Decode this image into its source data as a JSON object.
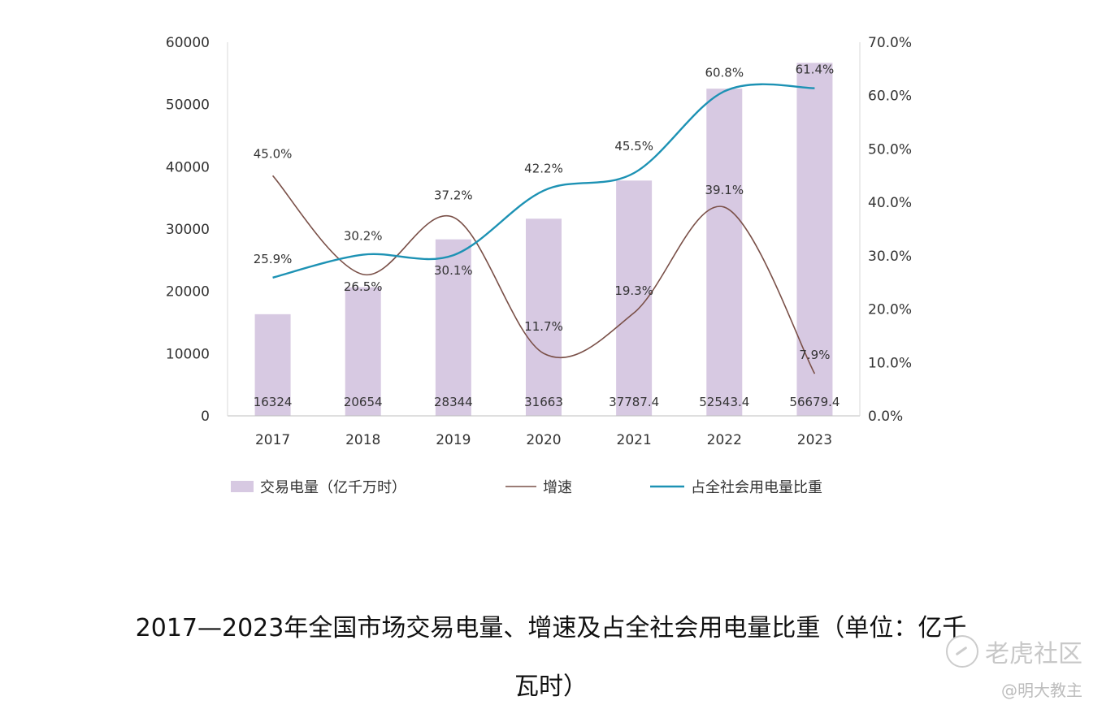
{
  "chart_data": {
    "type": "bar",
    "categories": [
      "2017",
      "2018",
      "2019",
      "2020",
      "2021",
      "2022",
      "2023"
    ],
    "series": [
      {
        "name": "交易电量（亿千万时）",
        "kind": "bar",
        "axis": "left",
        "values": [
          16324,
          20654,
          28344,
          31663,
          37787.4,
          52543.4,
          56679.4
        ],
        "labels": [
          "16324",
          "20654",
          "28344",
          "31663",
          "37787.4",
          "52543.4",
          "56679.4"
        ],
        "color": "#d7c9e2"
      },
      {
        "name": "增速",
        "kind": "line",
        "axis": "right",
        "values": [
          45.0,
          26.5,
          37.2,
          11.7,
          19.3,
          39.1,
          7.9
        ],
        "labels": [
          "45.0%",
          "26.5%",
          "37.2%",
          "11.7%",
          "19.3%",
          "39.1%",
          "7.9%"
        ],
        "color": "#7a5048"
      },
      {
        "name": "占全社会用电量比重",
        "kind": "line",
        "axis": "right",
        "values": [
          25.9,
          30.2,
          30.1,
          42.2,
          45.5,
          60.8,
          61.4
        ],
        "labels": [
          "25.9%",
          "30.2%",
          "30.1%",
          "42.2%",
          "45.5%",
          "60.8%",
          "61.4%"
        ],
        "color": "#1d92b4"
      }
    ],
    "left_axis": {
      "ylim": [
        0,
        60000
      ],
      "ticks": [
        "0",
        "10000",
        "20000",
        "30000",
        "40000",
        "50000",
        "60000"
      ]
    },
    "right_axis": {
      "ylim": [
        0,
        70
      ],
      "ticks": [
        "0.0%",
        "10.0%",
        "20.0%",
        "30.0%",
        "40.0%",
        "50.0%",
        "60.0%",
        "70.0%"
      ]
    },
    "legend_position": "bottom",
    "title": ""
  },
  "caption": {
    "line1": "2017—2023年全国市场交易电量、增速及占全社会用电量比重（单位：亿千",
    "line2": "瓦时）"
  },
  "watermark": {
    "brand": "老虎社区",
    "user": "@明大教主"
  }
}
